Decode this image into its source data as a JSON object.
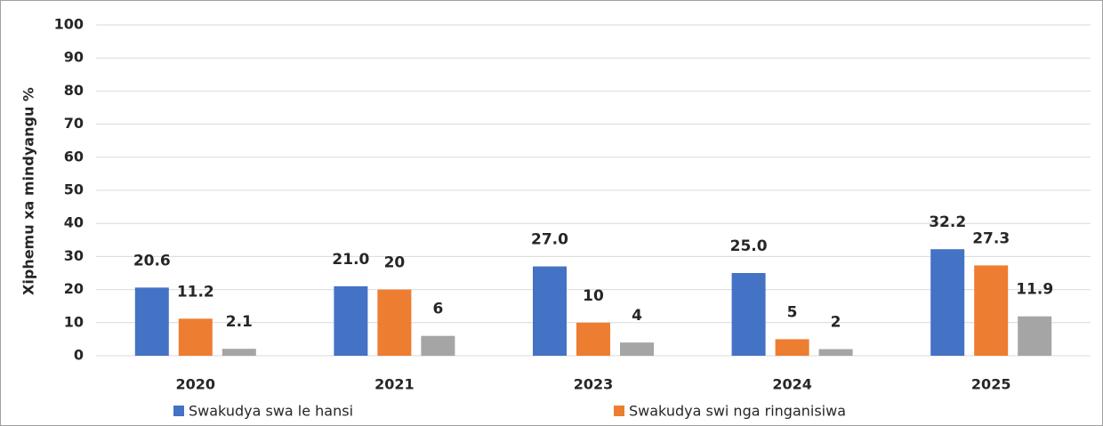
{
  "chart_data": {
    "type": "bar",
    "y_axis_label": "Xiphemu xa mindyangu %",
    "categories": [
      "2020",
      "2021",
      "2023",
      "2024",
      "2025"
    ],
    "series": [
      {
        "name": "Swakudya swa le hansi",
        "color": "#4472c4",
        "values": [
          20.6,
          21,
          27,
          25,
          32.2
        ],
        "value_labels": [
          "20.6",
          "21.0",
          "27.0",
          "25.0",
          "32.2"
        ]
      },
      {
        "name": "Swakudya swi nga ringanisiwa",
        "color": "#ed7d31",
        "values": [
          11.2,
          20,
          10,
          5,
          27.3
        ]
      },
      {
        "color": "#a5a5a5",
        "values": [
          2.1,
          6,
          4,
          2,
          11.9
        ]
      }
    ],
    "ylim": [
      0,
      100
    ],
    "yticks": [
      0,
      10,
      20,
      30,
      40,
      50,
      60,
      70,
      80,
      90,
      100
    ],
    "grid": true
  }
}
